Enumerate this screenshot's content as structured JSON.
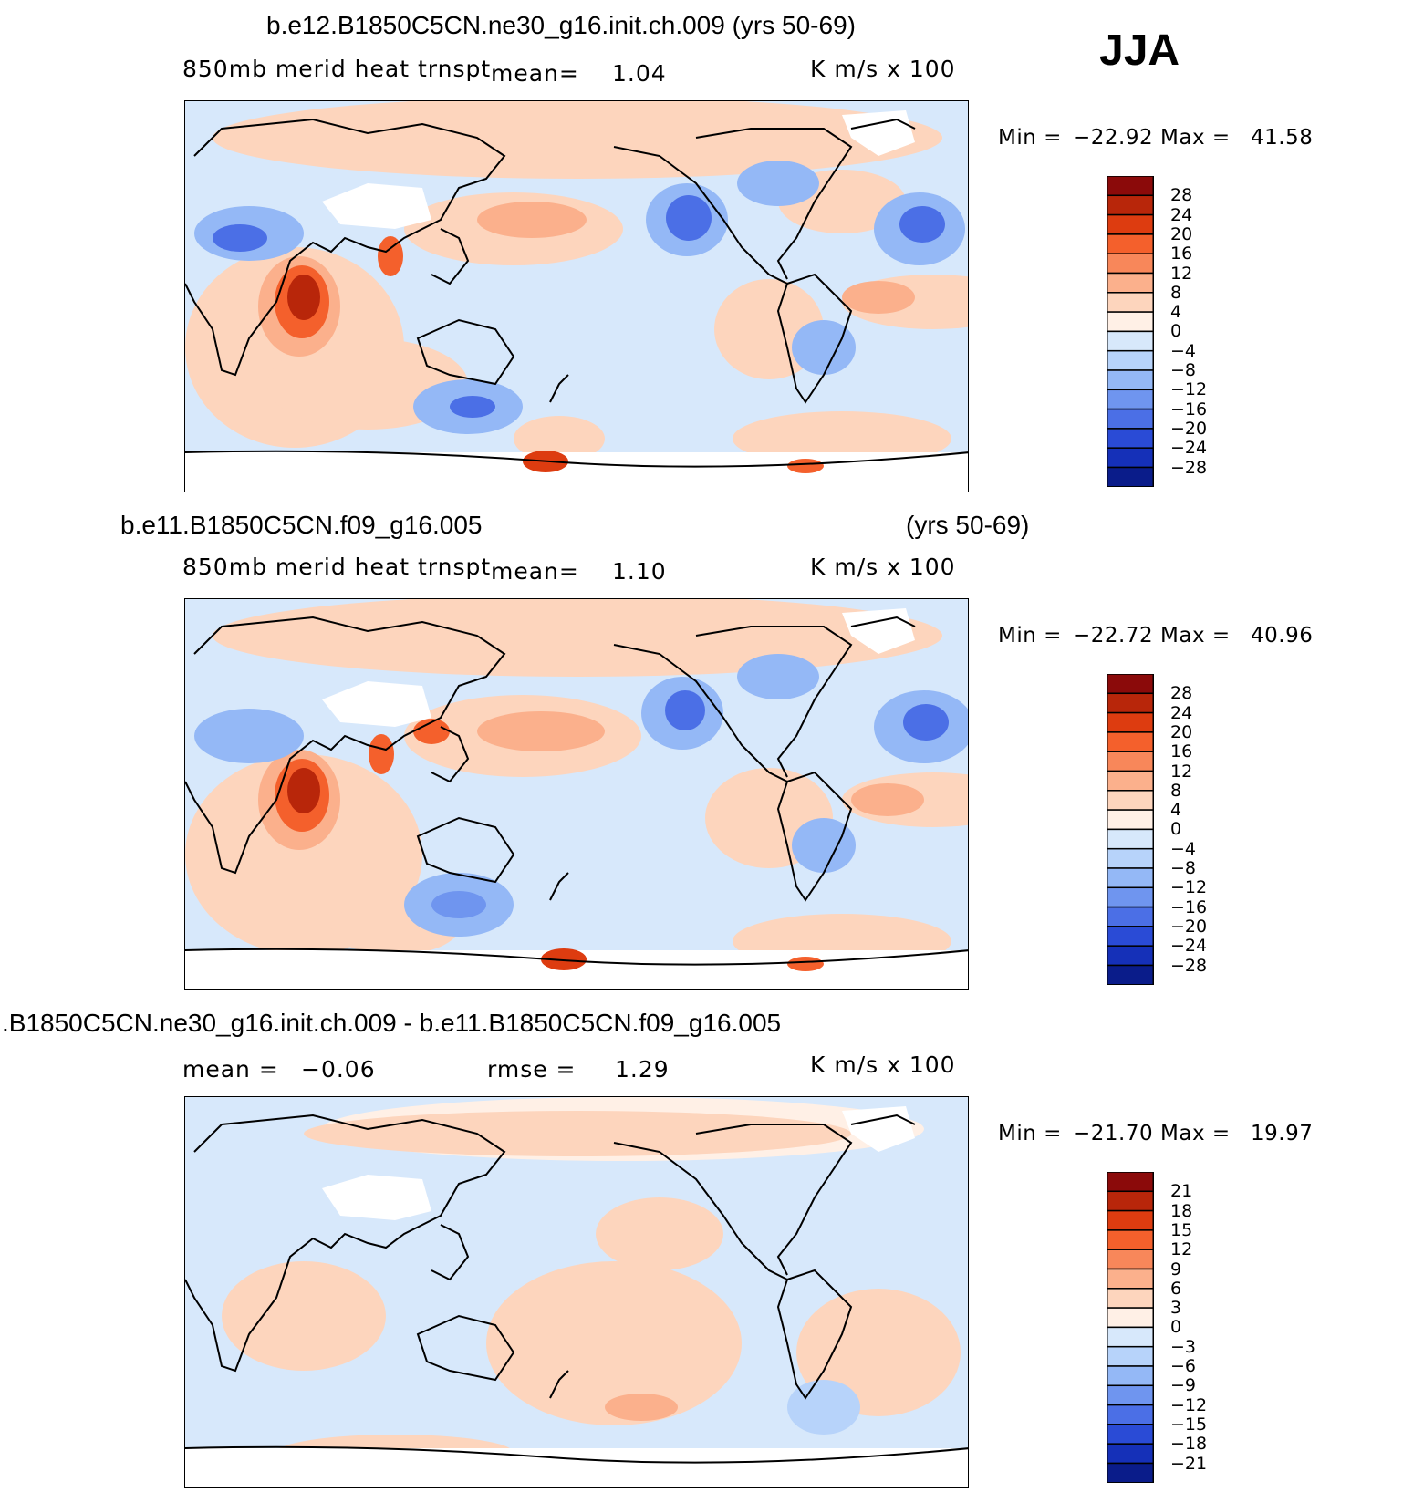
{
  "season": "JJA",
  "panels": [
    {
      "title": "b.e12.B1850C5CN.ne30_g16.init.ch.009 (yrs 50-69)",
      "title_right": "",
      "variable": "850mb merid heat trnspt",
      "mean_label": "mean=",
      "mean_value": "1.04",
      "rmse_label": "",
      "rmse_value": "",
      "units": "K m/s x 100",
      "min_label": "Min =",
      "min_value": "−22.92",
      "max_label": "Max =",
      "max_value": "41.58"
    },
    {
      "title": "b.e11.B1850C5CN.f09_g16.005",
      "title_right": "(yrs 50-69)",
      "variable": "850mb merid heat trnspt",
      "mean_label": "mean=",
      "mean_value": "1.10",
      "rmse_label": "",
      "rmse_value": "",
      "units": "K m/s x 100",
      "min_label": "Min =",
      "min_value": "−22.72",
      "max_label": "Max =",
      "max_value": "40.96"
    },
    {
      "title": ".B1850C5CN.ne30_g16.init.ch.009 - b.e11.B1850C5CN.f09_g16.005",
      "title_right": "",
      "variable": "",
      "mean_label": "mean =",
      "mean_value": "−0.06",
      "rmse_label": "rmse =",
      "rmse_value": "1.29",
      "units": "K m/s x 100",
      "min_label": "Min =",
      "min_value": "−21.70",
      "max_label": "Max =",
      "max_value": "19.97"
    }
  ],
  "colorbars": [
    {
      "ticks": [
        "28",
        "24",
        "20",
        "16",
        "12",
        "8",
        "4",
        "0",
        "−4",
        "−8",
        "−12",
        "−16",
        "−20",
        "−24",
        "−28"
      ],
      "colors": [
        "#8b0a0a",
        "#b8260a",
        "#dd3c10",
        "#f4602c",
        "#f8875a",
        "#fbb08c",
        "#fdd5bd",
        "#fff0e6",
        "#d7e8fb",
        "#b7d3fa",
        "#94b8f6",
        "#6f95ef",
        "#4b6fe6",
        "#2a4bd6",
        "#1530b8",
        "#0a1c8a"
      ]
    },
    {
      "ticks": [
        "28",
        "24",
        "20",
        "16",
        "12",
        "8",
        "4",
        "0",
        "−4",
        "−8",
        "−12",
        "−16",
        "−20",
        "−24",
        "−28"
      ],
      "colors": [
        "#8b0a0a",
        "#b8260a",
        "#dd3c10",
        "#f4602c",
        "#f8875a",
        "#fbb08c",
        "#fdd5bd",
        "#fff0e6",
        "#d7e8fb",
        "#b7d3fa",
        "#94b8f6",
        "#6f95ef",
        "#4b6fe6",
        "#2a4bd6",
        "#1530b8",
        "#0a1c8a"
      ]
    },
    {
      "ticks": [
        "21",
        "18",
        "15",
        "12",
        "9",
        "6",
        "3",
        "0",
        "−3",
        "−6",
        "−9",
        "−12",
        "−15",
        "−18",
        "−21"
      ],
      "colors": [
        "#8b0a0a",
        "#b8260a",
        "#dd3c10",
        "#f4602c",
        "#f8875a",
        "#fbb08c",
        "#fdd5bd",
        "#fff0e6",
        "#d7e8fb",
        "#b7d3fa",
        "#94b8f6",
        "#6f95ef",
        "#4b6fe6",
        "#2a4bd6",
        "#1530b8",
        "#0a1c8a"
      ]
    }
  ],
  "chart_data": [
    {
      "type": "heatmap",
      "title": "b.e12.B1850C5CN.ne30_g16.init.ch.009 (yrs 50-69)",
      "variable": "850mb merid heat trnspt",
      "units": "K m/s x 100",
      "mean": 1.04,
      "min": -22.92,
      "max": 41.58,
      "contour_levels": [
        -28,
        -24,
        -20,
        -16,
        -12,
        -8,
        -4,
        0,
        4,
        8,
        12,
        16,
        20,
        24,
        28
      ],
      "projection": "global, centered on Pacific (longitude 30E to 390E)"
    },
    {
      "type": "heatmap",
      "title": "b.e11.B1850C5CN.f09_g16.005 (yrs 50-69)",
      "variable": "850mb merid heat trnspt",
      "units": "K m/s x 100",
      "mean": 1.1,
      "min": -22.72,
      "max": 40.96,
      "contour_levels": [
        -28,
        -24,
        -20,
        -16,
        -12,
        -8,
        -4,
        0,
        4,
        8,
        12,
        16,
        20,
        24,
        28
      ],
      "projection": "global, centered on Pacific (longitude 30E to 390E)"
    },
    {
      "type": "heatmap",
      "title": ".B1850C5CN.ne30_g16.init.ch.009 - b.e11.B1850C5CN.f09_g16.005",
      "units": "K m/s x 100",
      "mean": -0.06,
      "rmse": 1.29,
      "min": -21.7,
      "max": 19.97,
      "contour_levels": [
        -21,
        -18,
        -15,
        -12,
        -9,
        -6,
        -3,
        0,
        3,
        6,
        9,
        12,
        15,
        18,
        21
      ],
      "projection": "global, centered on Pacific (longitude 30E to 390E)"
    }
  ]
}
